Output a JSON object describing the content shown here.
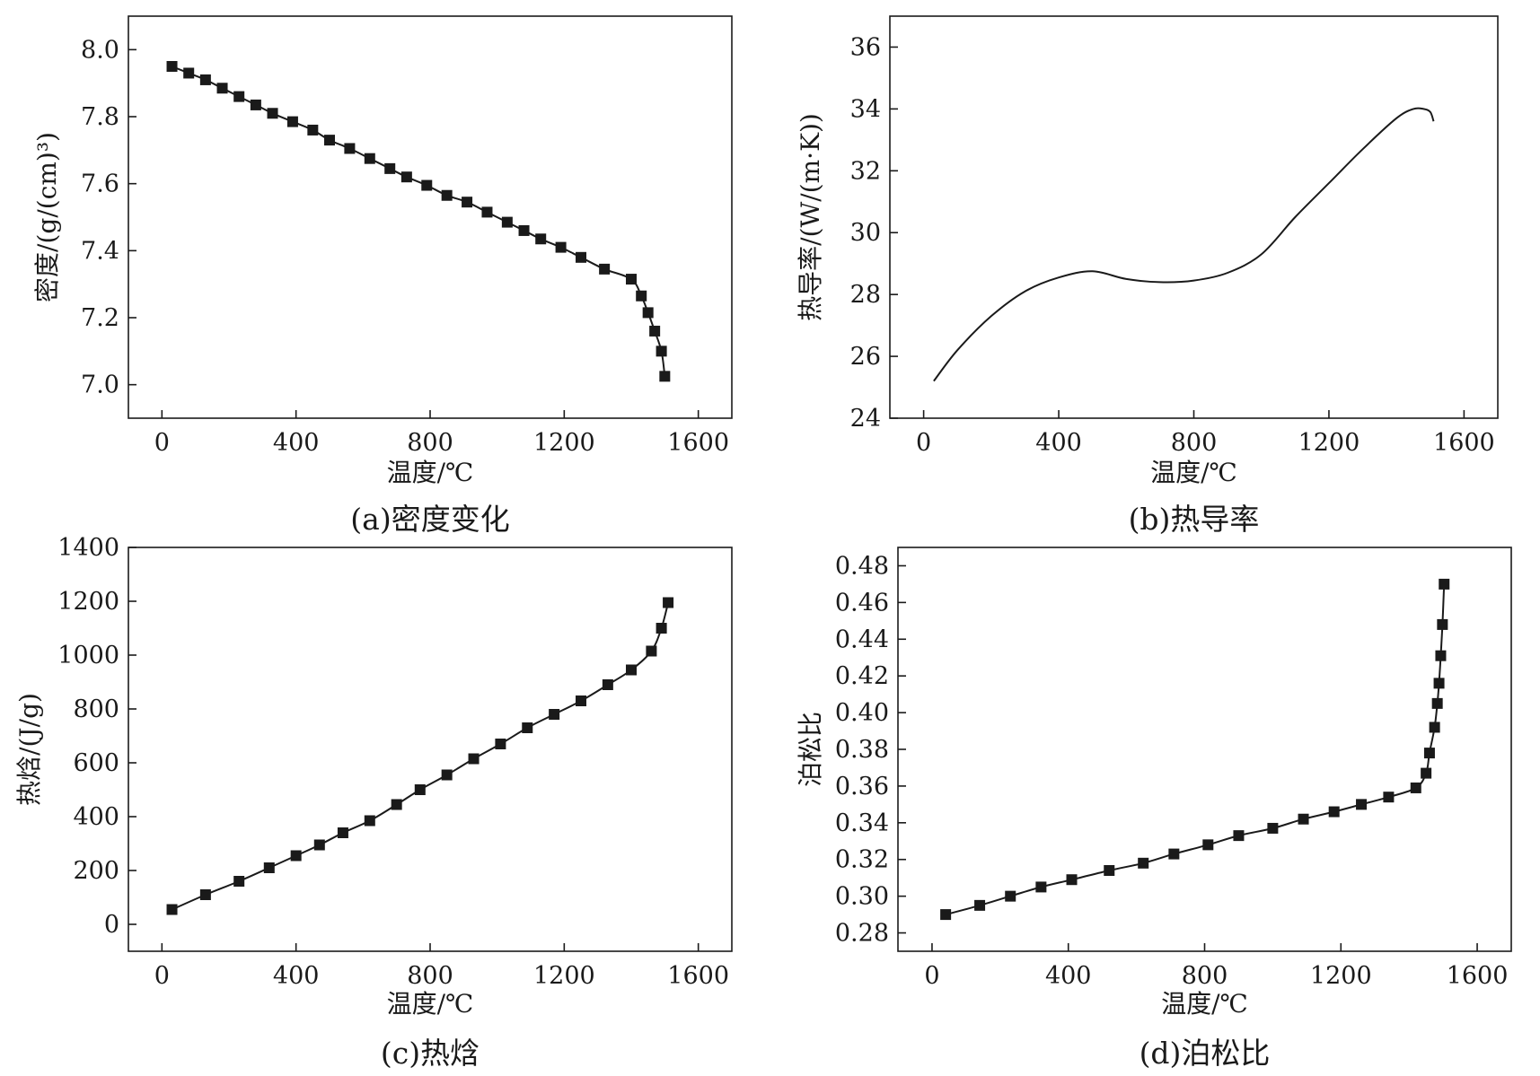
{
  "chart_data": [
    {
      "type": "line",
      "caption": "(a)密度变化",
      "xlabel": "温度/℃",
      "ylabel": "密度/(g/(cm)³)",
      "xlim": [
        -100,
        1700
      ],
      "ylim": [
        6.9,
        8.1
      ],
      "xticks": [
        0,
        400,
        800,
        1200,
        1600
      ],
      "yticks": [
        7.0,
        7.2,
        7.4,
        7.6,
        7.8,
        8.0
      ],
      "y_decimals": 1,
      "markers": "square",
      "series": [
        {
          "x": [
            30,
            80,
            130,
            180,
            230,
            280,
            330,
            390,
            450,
            500,
            560,
            620,
            680,
            730,
            790,
            850,
            910,
            970,
            1030,
            1080,
            1130,
            1190,
            1250,
            1320,
            1400,
            1430,
            1450,
            1470,
            1490,
            1500
          ],
          "y": [
            7.95,
            7.93,
            7.91,
            7.885,
            7.86,
            7.835,
            7.81,
            7.785,
            7.76,
            7.73,
            7.705,
            7.675,
            7.645,
            7.62,
            7.595,
            7.565,
            7.545,
            7.515,
            7.485,
            7.46,
            7.435,
            7.41,
            7.38,
            7.345,
            7.315,
            7.265,
            7.215,
            7.16,
            7.1,
            7.025
          ]
        }
      ]
    },
    {
      "type": "line",
      "caption": "(b)热导率",
      "xlabel": "温度/℃",
      "ylabel": "热导率/(W/(m·K))",
      "xlim": [
        -100,
        1700
      ],
      "ylim": [
        24,
        37
      ],
      "xticks": [
        0,
        400,
        800,
        1200,
        1600
      ],
      "yticks": [
        24,
        26,
        28,
        30,
        32,
        34,
        36
      ],
      "y_decimals": 0,
      "markers": "none",
      "series": [
        {
          "x": [
            30,
            100,
            200,
            300,
            400,
            500,
            600,
            700,
            800,
            900,
            1000,
            1100,
            1200,
            1300,
            1400,
            1450,
            1480,
            1500,
            1510
          ],
          "y": [
            25.2,
            26.2,
            27.3,
            28.1,
            28.55,
            28.75,
            28.5,
            28.4,
            28.45,
            28.7,
            29.3,
            30.5,
            31.6,
            32.7,
            33.7,
            34.0,
            34.0,
            33.9,
            33.6
          ]
        }
      ]
    },
    {
      "type": "line",
      "caption": "(c)热焓",
      "xlabel": "温度/℃",
      "ylabel": "热焓/(J/g)",
      "xlim": [
        -100,
        1700
      ],
      "ylim": [
        -100,
        1400
      ],
      "xticks": [
        0,
        400,
        800,
        1200,
        1600
      ],
      "yticks": [
        0,
        200,
        400,
        600,
        800,
        1000,
        1200,
        1400
      ],
      "y_decimals": 0,
      "markers": "square",
      "series": [
        {
          "x": [
            30,
            130,
            230,
            320,
            400,
            470,
            540,
            620,
            700,
            770,
            850,
            930,
            1010,
            1090,
            1170,
            1250,
            1330,
            1400,
            1460,
            1490,
            1510
          ],
          "y": [
            55,
            110,
            160,
            210,
            255,
            295,
            340,
            385,
            445,
            500,
            555,
            615,
            670,
            730,
            780,
            830,
            890,
            945,
            1015,
            1100,
            1195
          ]
        }
      ]
    },
    {
      "type": "line",
      "caption": "(d)泊松比",
      "xlabel": "温度/℃",
      "ylabel": "泊松比",
      "xlim": [
        -100,
        1700
      ],
      "ylim": [
        0.27,
        0.49
      ],
      "xticks": [
        0,
        400,
        800,
        1200,
        1600
      ],
      "yticks": [
        0.28,
        0.3,
        0.32,
        0.34,
        0.36,
        0.38,
        0.4,
        0.42,
        0.44,
        0.46,
        0.48
      ],
      "y_decimals": 2,
      "markers": "square",
      "series": [
        {
          "x": [
            40,
            140,
            230,
            320,
            410,
            520,
            620,
            710,
            810,
            900,
            1000,
            1090,
            1180,
            1260,
            1340,
            1420,
            1450,
            1460,
            1475,
            1483,
            1488,
            1493,
            1498,
            1503
          ],
          "y": [
            0.29,
            0.295,
            0.3,
            0.305,
            0.309,
            0.314,
            0.318,
            0.323,
            0.328,
            0.333,
            0.337,
            0.342,
            0.346,
            0.35,
            0.354,
            0.359,
            0.367,
            0.378,
            0.392,
            0.405,
            0.416,
            0.431,
            0.448,
            0.47
          ]
        }
      ]
    }
  ]
}
